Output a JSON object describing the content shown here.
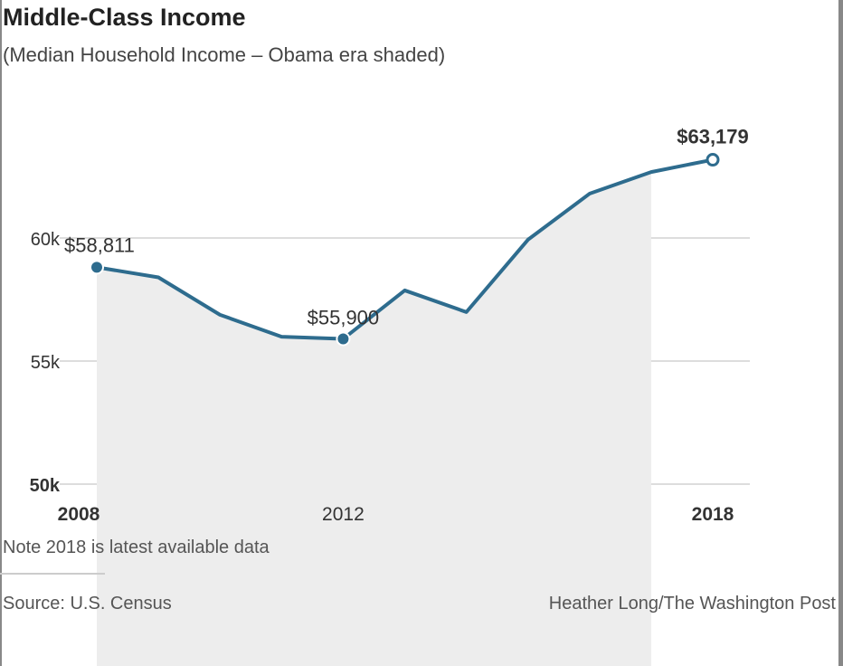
{
  "title": "Middle-Class Income",
  "subtitle": "(Median Household Income – Obama era shaded)",
  "note": "Note 2018 is latest available data",
  "source": "Source: U.S. Census",
  "credit": "Heather Long/The Washington Post",
  "chart_data": {
    "type": "line",
    "x": [
      2008,
      2009,
      2010,
      2011,
      2012,
      2013,
      2014,
      2015,
      2016,
      2017,
      2018
    ],
    "series": [
      {
        "values": [
          58811,
          58400,
          56880,
          55990,
          55900,
          57870,
          56990,
          59930,
          61800,
          62680,
          63179
        ]
      }
    ],
    "ylim": [
      50000,
      63500
    ],
    "xlim": [
      2008,
      2018
    ],
    "yticks": [
      {
        "value": 50000,
        "label": "50k"
      },
      {
        "value": 55000,
        "label": "55k"
      },
      {
        "value": 60000,
        "label": "60k"
      }
    ],
    "xticks": [
      {
        "value": 2008,
        "label": "2008"
      },
      {
        "value": 2012,
        "label": "2012"
      },
      {
        "value": 2018,
        "label": "2018"
      }
    ],
    "annotations": [
      {
        "x": 2008,
        "label": "$58,811"
      },
      {
        "x": 2012,
        "label": "$55,900"
      },
      {
        "x": 2018,
        "label": "$63,179"
      }
    ],
    "shaded_range": [
      2008,
      2017
    ],
    "grid": true,
    "colors": {
      "line": "#2e6c8e",
      "shade": "#ededed",
      "grid": "#dddddd"
    }
  }
}
